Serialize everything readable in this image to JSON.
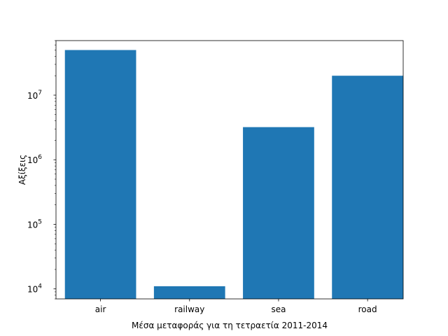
{
  "chart_data": {
    "type": "bar",
    "categories": [
      "air",
      "railway",
      "sea",
      "road"
    ],
    "values": [
      50000000,
      11000,
      3200000,
      20000000
    ],
    "xlabel": "Μέσα μεταφοράς για τη τετραετία 2011-2014",
    "ylabel": "Αξίξεις",
    "yscale": "log",
    "ylim": [
      7000,
      70000000
    ],
    "y_major_ticks": [
      {
        "value": 10000,
        "base": "10",
        "exp": "4"
      },
      {
        "value": 100000,
        "base": "10",
        "exp": "5"
      },
      {
        "value": 1000000,
        "base": "10",
        "exp": "6"
      },
      {
        "value": 10000000,
        "base": "10",
        "exp": "7"
      }
    ],
    "bar_color": "#1f77b4",
    "grid": false,
    "legend": "none"
  }
}
